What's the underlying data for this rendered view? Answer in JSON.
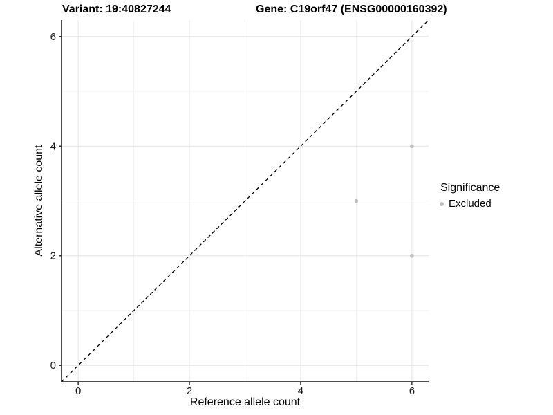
{
  "header": {
    "title_left": "Variant: 19:40827244",
    "title_right": "Gene: C19orf47 (ENSG00000160392)"
  },
  "chart_data": {
    "type": "scatter",
    "xlabel": "Reference allele count",
    "ylabel": "Alternative allele count",
    "xlim": [
      -0.3,
      6.3
    ],
    "ylim": [
      -0.3,
      6.3
    ],
    "xticks": [
      0,
      2,
      4,
      6
    ],
    "yticks": [
      0,
      2,
      4,
      6
    ],
    "xticks_minor": [
      1,
      3,
      5
    ],
    "yticks_minor": [
      1,
      3,
      5
    ],
    "grid": "major and minor gridlines, white panel background",
    "reference_line": {
      "type": "identity y=x diagonal",
      "style": "dashed",
      "color": "#000000"
    },
    "series": [
      {
        "name": "Excluded",
        "color": "#bebebe",
        "marker": "circle",
        "points": [
          [
            6,
            4
          ],
          [
            5,
            3
          ],
          [
            6,
            2
          ]
        ]
      }
    ],
    "legend": {
      "title": "Significance",
      "position": "right",
      "items": [
        {
          "label": "Excluded",
          "color": "#bebebe"
        }
      ]
    }
  }
}
